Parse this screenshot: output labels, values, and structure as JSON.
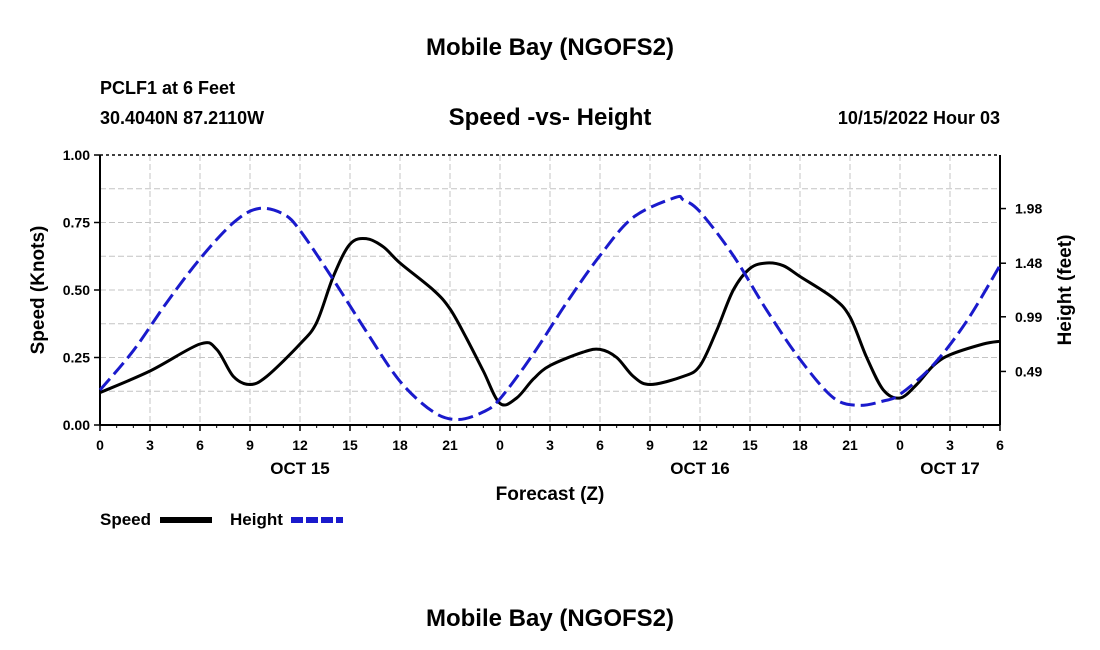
{
  "chart_data": {
    "type": "line",
    "title": "Mobile Bay (NGOFS2)",
    "subtitle": "Speed -vs- Height",
    "station": "PCLF1 at 6 Feet",
    "location": "30.4040N  87.2110W",
    "timestamp": "10/15/2022 Hour 03",
    "xlabel": "Forecast (Z)",
    "ylabel_left": "Speed (Knots)",
    "ylabel_right": "Height (feet)",
    "footer_title": "Mobile Bay (NGOFS2)",
    "x_range": [
      0,
      54
    ],
    "x_tick_labels": [
      "0",
      "3",
      "6",
      "9",
      "12",
      "15",
      "18",
      "21",
      "0",
      "3",
      "6",
      "9",
      "12",
      "15",
      "18",
      "21",
      "0",
      "3",
      "6"
    ],
    "date_labels": [
      {
        "label": "OCT 15",
        "hour": 12
      },
      {
        "label": "OCT 16",
        "hour": 36
      },
      {
        "label": "OCT 17",
        "hour": 51
      }
    ],
    "y_left": {
      "range": [
        0,
        1.0
      ],
      "ticks": [
        "0.00",
        "0.25",
        "0.50",
        "0.75",
        "1.00"
      ]
    },
    "y_right": {
      "range": [
        0,
        2.47
      ],
      "ticks": [
        {
          "value": 0.49,
          "label": "0.49"
        },
        {
          "value": 0.99,
          "label": "0.99"
        },
        {
          "value": 1.48,
          "label": "1.48"
        },
        {
          "value": 1.98,
          "label": "1.98"
        }
      ]
    },
    "legend": [
      {
        "name": "Speed",
        "color": "#000000",
        "style": "solid"
      },
      {
        "name": "Height",
        "color": "#1a1acc",
        "style": "dashed"
      }
    ],
    "series": [
      {
        "name": "Speed",
        "axis": "left",
        "color": "#000000",
        "points": [
          [
            0,
            0.12
          ],
          [
            3,
            0.2
          ],
          [
            6,
            0.3
          ],
          [
            7,
            0.28
          ],
          [
            8,
            0.18
          ],
          [
            9,
            0.15
          ],
          [
            10,
            0.18
          ],
          [
            12,
            0.3
          ],
          [
            13,
            0.38
          ],
          [
            14,
            0.55
          ],
          [
            15,
            0.67
          ],
          [
            16,
            0.69
          ],
          [
            17,
            0.66
          ],
          [
            18,
            0.6
          ],
          [
            20,
            0.5
          ],
          [
            21,
            0.43
          ],
          [
            22,
            0.32
          ],
          [
            23,
            0.2
          ],
          [
            24,
            0.08
          ],
          [
            25,
            0.1
          ],
          [
            26,
            0.17
          ],
          [
            27,
            0.22
          ],
          [
            29,
            0.27
          ],
          [
            30,
            0.28
          ],
          [
            31,
            0.25
          ],
          [
            32,
            0.18
          ],
          [
            33,
            0.15
          ],
          [
            35,
            0.18
          ],
          [
            36,
            0.22
          ],
          [
            37,
            0.35
          ],
          [
            38,
            0.5
          ],
          [
            39,
            0.58
          ],
          [
            40,
            0.6
          ],
          [
            41,
            0.59
          ],
          [
            42,
            0.55
          ],
          [
            44,
            0.47
          ],
          [
            45,
            0.4
          ],
          [
            46,
            0.25
          ],
          [
            47,
            0.13
          ],
          [
            48,
            0.1
          ],
          [
            49,
            0.15
          ],
          [
            50,
            0.22
          ],
          [
            51,
            0.26
          ],
          [
            53,
            0.3
          ],
          [
            54,
            0.31
          ]
        ]
      },
      {
        "name": "Height",
        "axis": "right",
        "color": "#1a1acc",
        "points": [
          [
            0,
            0.32
          ],
          [
            2,
            0.68
          ],
          [
            4,
            1.12
          ],
          [
            6,
            1.52
          ],
          [
            8,
            1.85
          ],
          [
            9.5,
            1.98
          ],
          [
            11,
            1.93
          ],
          [
            12,
            1.78
          ],
          [
            14,
            1.33
          ],
          [
            16,
            0.85
          ],
          [
            18,
            0.4
          ],
          [
            20,
            0.12
          ],
          [
            21.5,
            0.05
          ],
          [
            23,
            0.12
          ],
          [
            24,
            0.24
          ],
          [
            26,
            0.65
          ],
          [
            28,
            1.12
          ],
          [
            30,
            1.55
          ],
          [
            32,
            1.9
          ],
          [
            34.5,
            2.08
          ],
          [
            35,
            2.06
          ],
          [
            36,
            1.95
          ],
          [
            38,
            1.55
          ],
          [
            40,
            1.05
          ],
          [
            42,
            0.6
          ],
          [
            44,
            0.25
          ],
          [
            45.5,
            0.18
          ],
          [
            47,
            0.22
          ],
          [
            48,
            0.28
          ],
          [
            50,
            0.55
          ],
          [
            52,
            0.95
          ],
          [
            54,
            1.46
          ]
        ]
      }
    ]
  }
}
